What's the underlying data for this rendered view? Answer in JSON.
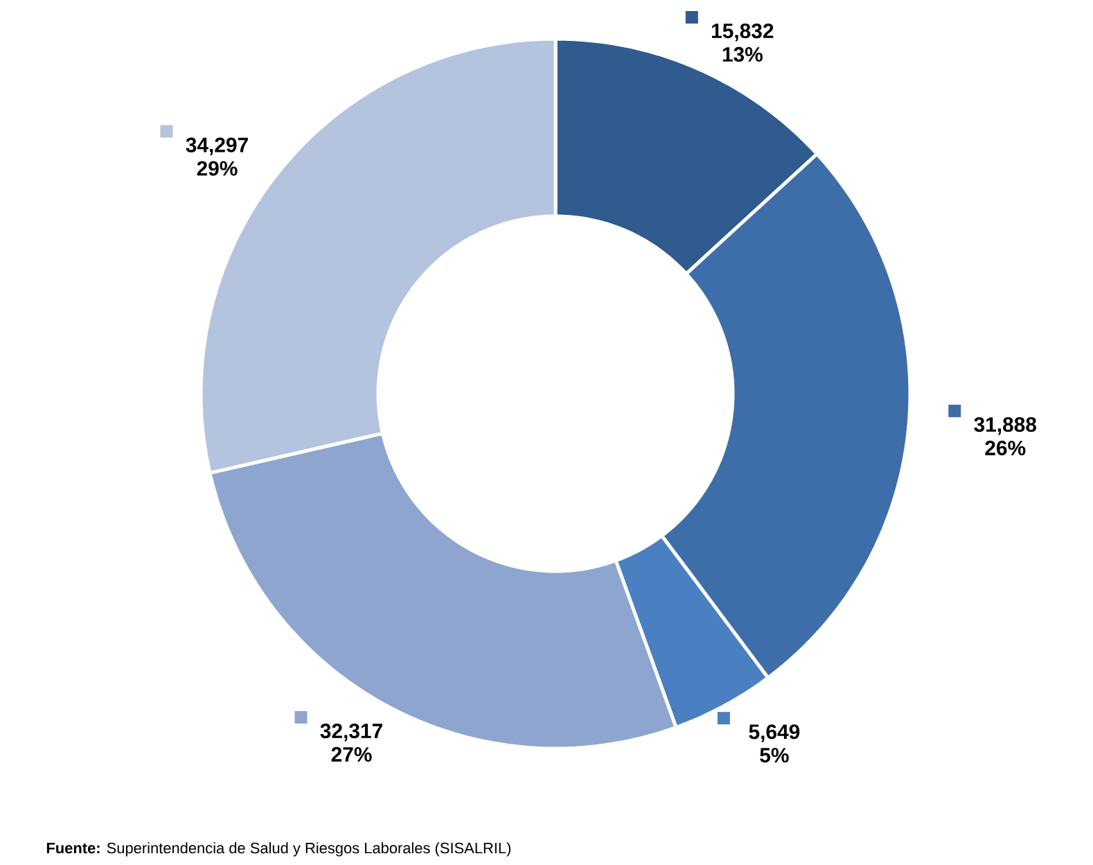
{
  "chart_data": {
    "type": "donut",
    "categories": [
      null,
      null,
      null,
      null,
      null
    ],
    "values": [
      15832,
      31888,
      5649,
      32317,
      34297
    ],
    "colors": [
      "#2f5b8e",
      "#3e6ea9",
      "#4a80c2",
      "#8ea6cf",
      "#b4c3de"
    ],
    "value_labels": [
      "15,832 13%",
      "31,888 26%",
      "5,649 5%",
      "32,317 27%",
      "34,297 29%"
    ],
    "annotations": [
      "**Fuente:** Superintendencia de Salud y Riesgos Laborales (SISALRIL)"
    ]
  }
}
